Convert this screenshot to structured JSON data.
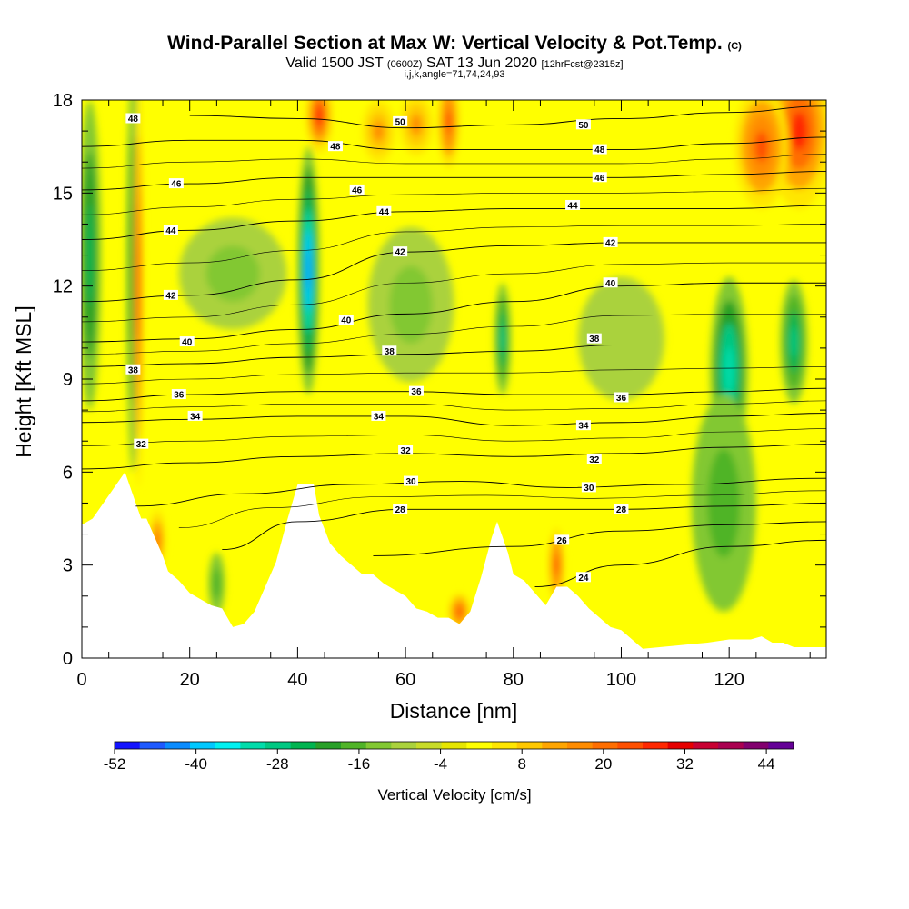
{
  "header": {
    "title_main": "Wind-Parallel Section at Max W: Vertical Velocity & Pot.Temp.",
    "title_units": "(C)",
    "valid_prefix": "Valid 1500 JST",
    "valid_z": "(0600Z)",
    "valid_date": "SAT 13 Jun 2020",
    "valid_fcst": "[12hrFcst@2315z]",
    "indices": "i,j,k,angle=71,74,24,93"
  },
  "chart_data": {
    "type": "heatmap",
    "xlabel": "Distance [nm]",
    "ylabel": "Height [Kft MSL]",
    "xlim": [
      0,
      138
    ],
    "ylim": [
      0,
      18
    ],
    "x_ticks": [
      0,
      20,
      40,
      60,
      80,
      100,
      120
    ],
    "y_ticks": [
      0,
      3,
      6,
      9,
      12,
      15,
      18
    ],
    "x_tick_labels": [
      "0",
      "20",
      "40",
      "60",
      "80",
      "100",
      "120"
    ],
    "y_tick_labels": [
      "0",
      "3",
      "6",
      "9",
      "12",
      "15",
      "18"
    ],
    "colorbar": {
      "title": "Vertical Velocity [cm/s]",
      "min": -52,
      "max": 48,
      "step": 4,
      "tick_values": [
        -52,
        -40,
        -28,
        -16,
        -4,
        8,
        20,
        32,
        44
      ],
      "tick_labels": [
        "-52",
        "-40",
        "-28",
        "-16",
        "-4",
        "8",
        "20",
        "32",
        "44"
      ],
      "colors": [
        "#1414ff",
        "#1e5aff",
        "#0a8cff",
        "#00c8ff",
        "#00f0f0",
        "#00dcaa",
        "#00c882",
        "#00b450",
        "#28a028",
        "#50b428",
        "#82c832",
        "#aad23c",
        "#c8dc28",
        "#e6e600",
        "#ffff00",
        "#ffe600",
        "#ffc800",
        "#ffa500",
        "#ff8c00",
        "#ff6e00",
        "#ff5000",
        "#ff2800",
        "#e60000",
        "#c80032",
        "#aa0050",
        "#82006e",
        "#640096"
      ]
    },
    "terrain": [
      [
        0,
        4.3
      ],
      [
        2,
        4.5
      ],
      [
        4,
        5.0
      ],
      [
        6,
        5.5
      ],
      [
        8,
        6.0
      ],
      [
        9,
        5.5
      ],
      [
        10,
        5.0
      ],
      [
        11,
        4.5
      ],
      [
        12,
        4.5
      ],
      [
        14,
        3.7
      ],
      [
        15,
        3.3
      ],
      [
        16,
        2.8
      ],
      [
        18,
        2.5
      ],
      [
        20,
        2.1
      ],
      [
        22,
        1.9
      ],
      [
        24,
        1.7
      ],
      [
        26,
        1.6
      ],
      [
        28,
        1.0
      ],
      [
        30,
        1.1
      ],
      [
        32,
        1.5
      ],
      [
        34,
        2.3
      ],
      [
        36,
        3.1
      ],
      [
        38,
        4.4
      ],
      [
        40,
        5.6
      ],
      [
        43,
        5.6
      ],
      [
        44,
        4.6
      ],
      [
        46,
        3.7
      ],
      [
        48,
        3.3
      ],
      [
        50,
        3.0
      ],
      [
        52,
        2.7
      ],
      [
        54,
        2.7
      ],
      [
        56,
        2.4
      ],
      [
        58,
        2.2
      ],
      [
        60,
        2.0
      ],
      [
        62,
        1.6
      ],
      [
        64,
        1.5
      ],
      [
        66,
        1.3
      ],
      [
        68,
        1.3
      ],
      [
        70,
        1.1
      ],
      [
        72,
        1.5
      ],
      [
        74,
        2.6
      ],
      [
        76,
        3.9
      ],
      [
        77,
        4.4
      ],
      [
        79,
        3.4
      ],
      [
        80,
        2.7
      ],
      [
        82,
        2.5
      ],
      [
        84,
        2.1
      ],
      [
        86,
        1.7
      ],
      [
        88,
        2.3
      ],
      [
        90,
        2.3
      ],
      [
        92,
        2.0
      ],
      [
        94,
        1.6
      ],
      [
        96,
        1.3
      ],
      [
        98,
        1.0
      ],
      [
        100,
        0.9
      ],
      [
        102,
        0.6
      ],
      [
        104,
        0.3
      ],
      [
        110,
        0.4
      ],
      [
        116,
        0.5
      ],
      [
        120,
        0.6
      ],
      [
        124,
        0.6
      ],
      [
        126,
        0.7
      ],
      [
        128,
        0.5
      ],
      [
        130,
        0.5
      ],
      [
        132,
        0.35
      ],
      [
        138,
        0.35
      ]
    ],
    "isentropes": [
      {
        "value": 24,
        "label": "24",
        "points": [
          [
            84,
            2.3
          ],
          [
            100,
            3.0
          ],
          [
            120,
            3.6
          ],
          [
            138,
            3.8
          ]
        ]
      },
      {
        "value": 26,
        "label": "26",
        "points": [
          [
            54,
            3.3
          ],
          [
            80,
            3.6
          ],
          [
            100,
            4.1
          ],
          [
            120,
            4.3
          ],
          [
            138,
            4.4
          ]
        ]
      },
      {
        "value": 28,
        "label": "28",
        "points": [
          [
            26,
            3.5
          ],
          [
            40,
            4.4
          ],
          [
            60,
            4.8
          ],
          [
            80,
            4.8
          ],
          [
            100,
            4.8
          ],
          [
            120,
            4.9
          ],
          [
            138,
            5.0
          ]
        ]
      },
      {
        "value": 30,
        "label": "30",
        "points": [
          [
            10,
            4.9
          ],
          [
            30,
            5.3
          ],
          [
            50,
            5.6
          ],
          [
            70,
            5.7
          ],
          [
            90,
            5.5
          ],
          [
            110,
            5.6
          ],
          [
            138,
            5.8
          ]
        ]
      },
      {
        "value": 32,
        "label": "32",
        "points": [
          [
            0,
            6.1
          ],
          [
            20,
            6.3
          ],
          [
            40,
            6.5
          ],
          [
            60,
            6.6
          ],
          [
            80,
            6.5
          ],
          [
            100,
            6.6
          ],
          [
            120,
            6.8
          ],
          [
            138,
            6.9
          ]
        ]
      },
      {
        "value": 34,
        "label": "34",
        "points": [
          [
            0,
            7.6
          ],
          [
            20,
            7.7
          ],
          [
            40,
            7.8
          ],
          [
            60,
            7.8
          ],
          [
            80,
            7.5
          ],
          [
            100,
            7.6
          ],
          [
            120,
            7.8
          ],
          [
            138,
            7.9
          ]
        ]
      },
      {
        "value": 36,
        "label": "36",
        "points": [
          [
            0,
            8.3
          ],
          [
            20,
            8.5
          ],
          [
            40,
            8.6
          ],
          [
            60,
            8.6
          ],
          [
            80,
            8.5
          ],
          [
            100,
            8.5
          ],
          [
            120,
            8.6
          ],
          [
            138,
            8.7
          ]
        ]
      },
      {
        "value": 38,
        "label": "38",
        "points": [
          [
            0,
            9.4
          ],
          [
            20,
            9.5
          ],
          [
            40,
            9.7
          ],
          [
            60,
            9.8
          ],
          [
            80,
            9.9
          ],
          [
            100,
            10.1
          ],
          [
            120,
            10.1
          ],
          [
            138,
            10.1
          ]
        ]
      },
      {
        "value": 40,
        "label": "40",
        "points": [
          [
            0,
            10.2
          ],
          [
            20,
            10.3
          ],
          [
            40,
            10.6
          ],
          [
            60,
            11.1
          ],
          [
            80,
            11.5
          ],
          [
            100,
            12.0
          ],
          [
            120,
            12.1
          ],
          [
            138,
            12.1
          ]
        ]
      },
      {
        "value": 42,
        "label": "42",
        "points": [
          [
            0,
            11.5
          ],
          [
            20,
            11.7
          ],
          [
            40,
            12.2
          ],
          [
            60,
            13.1
          ],
          [
            80,
            13.3
          ],
          [
            100,
            13.4
          ],
          [
            120,
            13.4
          ],
          [
            138,
            13.4
          ]
        ]
      },
      {
        "value": 44,
        "label": "44",
        "points": [
          [
            0,
            13.5
          ],
          [
            20,
            13.8
          ],
          [
            40,
            14.1
          ],
          [
            60,
            14.4
          ],
          [
            80,
            14.5
          ],
          [
            100,
            14.5
          ],
          [
            120,
            14.5
          ],
          [
            138,
            14.6
          ]
        ]
      },
      {
        "value": 46,
        "label": "46",
        "points": [
          [
            0,
            15.1
          ],
          [
            20,
            15.3
          ],
          [
            40,
            15.5
          ],
          [
            60,
            15.5
          ],
          [
            80,
            15.5
          ],
          [
            100,
            15.5
          ],
          [
            120,
            15.6
          ],
          [
            138,
            15.7
          ]
        ]
      },
      {
        "value": 48,
        "label": "48",
        "points": [
          [
            0,
            16.5
          ],
          [
            20,
            16.7
          ],
          [
            40,
            16.7
          ],
          [
            60,
            16.4
          ],
          [
            80,
            16.4
          ],
          [
            100,
            16.4
          ],
          [
            120,
            16.6
          ],
          [
            138,
            16.8
          ]
        ]
      },
      {
        "value": 50,
        "label": "50",
        "points": [
          [
            20,
            17.5
          ],
          [
            40,
            17.4
          ],
          [
            60,
            17.1
          ],
          [
            80,
            17.2
          ],
          [
            100,
            17.4
          ],
          [
            120,
            17.6
          ],
          [
            138,
            17.8
          ]
        ]
      }
    ],
    "contour_label_positions": [
      {
        "text": "32",
        "x": 11,
        "y": 6.9
      },
      {
        "text": "34",
        "x": 21,
        "y": 7.8
      },
      {
        "text": "36",
        "x": 18,
        "y": 8.5
      },
      {
        "text": "38",
        "x": 9.5,
        "y": 9.3
      },
      {
        "text": "40",
        "x": 19.5,
        "y": 10.2
      },
      {
        "text": "42",
        "x": 16.5,
        "y": 11.7
      },
      {
        "text": "44",
        "x": 16.5,
        "y": 13.8
      },
      {
        "text": "46",
        "x": 17.5,
        "y": 15.3
      },
      {
        "text": "48",
        "x": 9.5,
        "y": 17.4
      },
      {
        "text": "48",
        "x": 47,
        "y": 16.5
      },
      {
        "text": "50",
        "x": 59,
        "y": 17.3
      },
      {
        "text": "46",
        "x": 51,
        "y": 15.1
      },
      {
        "text": "44",
        "x": 56,
        "y": 14.4
      },
      {
        "text": "42",
        "x": 59,
        "y": 13.1
      },
      {
        "text": "40",
        "x": 49,
        "y": 10.9
      },
      {
        "text": "38",
        "x": 57,
        "y": 9.9
      },
      {
        "text": "36",
        "x": 62,
        "y": 8.6
      },
      {
        "text": "34",
        "x": 55,
        "y": 7.8
      },
      {
        "text": "32",
        "x": 60,
        "y": 6.7
      },
      {
        "text": "30",
        "x": 61,
        "y": 5.7
      },
      {
        "text": "28",
        "x": 59,
        "y": 4.8
      },
      {
        "text": "26",
        "x": 89,
        "y": 3.8
      },
      {
        "text": "24",
        "x": 93,
        "y": 2.6
      },
      {
        "text": "50",
        "x": 93,
        "y": 17.2
      },
      {
        "text": "48",
        "x": 96,
        "y": 16.4
      },
      {
        "text": "46",
        "x": 96,
        "y": 15.5
      },
      {
        "text": "44",
        "x": 91,
        "y": 14.6
      },
      {
        "text": "42",
        "x": 98,
        "y": 13.4
      },
      {
        "text": "40",
        "x": 98,
        "y": 12.1
      },
      {
        "text": "38",
        "x": 95,
        "y": 10.3
      },
      {
        "text": "36",
        "x": 100,
        "y": 8.4
      },
      {
        "text": "34",
        "x": 93,
        "y": 7.5
      },
      {
        "text": "32",
        "x": 95,
        "y": 6.4
      },
      {
        "text": "30",
        "x": 94,
        "y": 5.5
      },
      {
        "text": "28",
        "x": 100,
        "y": 4.8
      }
    ],
    "features": [
      {
        "w": -44,
        "x": 42,
        "y": 12.5,
        "rx": 2.0,
        "ry": 4.0
      },
      {
        "w": -32,
        "x": 120,
        "y": 9.3,
        "rx": 3.5,
        "ry": 3.0
      },
      {
        "w": -28,
        "x": 132,
        "y": 10.2,
        "rx": 2.5,
        "ry": 2.0
      },
      {
        "w": -28,
        "x": 78,
        "y": 10.3,
        "rx": 1.5,
        "ry": 1.8
      },
      {
        "w": -16,
        "x": 119,
        "y": 5.0,
        "rx": 6.0,
        "ry": 3.5
      },
      {
        "w": -12,
        "x": 61,
        "y": 11.4,
        "rx": 8.0,
        "ry": 2.5
      },
      {
        "w": -12,
        "x": 28,
        "y": 12.4,
        "rx": 10.0,
        "ry": 1.8
      },
      {
        "w": -8,
        "x": 100,
        "y": 10.3,
        "rx": 8.0,
        "ry": 2.0
      },
      {
        "w": -24,
        "x": 1.5,
        "y": 13.0,
        "rx": 2.0,
        "ry": 5.0
      },
      {
        "w": -20,
        "x": 9.5,
        "y": 12.5,
        "rx": 1.2,
        "ry": 6.5
      },
      {
        "w": -16,
        "x": 25,
        "y": 2.4,
        "rx": 1.5,
        "ry": 1.0
      },
      {
        "w": 32,
        "x": 10.5,
        "y": 12.0,
        "rx": 0.8,
        "ry": 6.5
      },
      {
        "w": 32,
        "x": 44,
        "y": 17.5,
        "rx": 2.5,
        "ry": 1.2
      },
      {
        "w": 28,
        "x": 68,
        "y": 17.3,
        "rx": 2.0,
        "ry": 1.5
      },
      {
        "w": 32,
        "x": 133,
        "y": 17.0,
        "rx": 6.0,
        "ry": 2.5
      },
      {
        "w": 28,
        "x": 126,
        "y": 16.5,
        "rx": 5.0,
        "ry": 2.0
      },
      {
        "w": 28,
        "x": 88,
        "y": 3.0,
        "rx": 1.5,
        "ry": 1.2
      },
      {
        "w": 28,
        "x": 70,
        "y": 1.5,
        "rx": 2.0,
        "ry": 0.6
      },
      {
        "w": 24,
        "x": 14,
        "y": 3.8,
        "rx": 1.5,
        "ry": 1.0
      },
      {
        "w": 20,
        "x": 55,
        "y": 17.0,
        "rx": 3.0,
        "ry": 1.0
      },
      {
        "w": 20,
        "x": 62,
        "y": 17.2,
        "rx": 3.0,
        "ry": 1.0
      }
    ]
  }
}
